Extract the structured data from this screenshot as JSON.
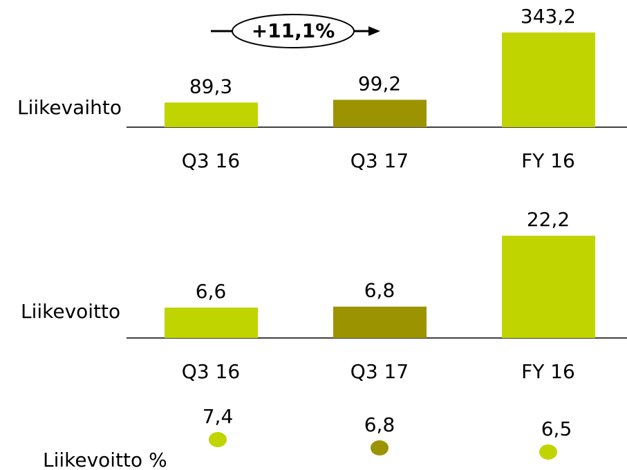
{
  "chart_data": [
    {
      "type": "bar",
      "label": "Liikevaihto",
      "categories": [
        "Q3 16",
        "Q3 17",
        "FY 16"
      ],
      "values": [
        89.3,
        99.2,
        343.2
      ],
      "value_labels": [
        "89,3",
        "99,2",
        "343,2"
      ],
      "colors": [
        "#c0d400",
        "#9c9300",
        "#c0d400"
      ],
      "annotation": "+11,1%"
    },
    {
      "type": "bar",
      "label": "Liikevoitto",
      "categories": [
        "Q3 16",
        "Q3 17",
        "FY 16"
      ],
      "values": [
        6.6,
        6.8,
        22.2
      ],
      "value_labels": [
        "6,6",
        "6,8",
        "22,2"
      ],
      "colors": [
        "#c0d400",
        "#9c9300",
        "#c0d400"
      ]
    },
    {
      "type": "dot",
      "label": "Liikevoitto %",
      "values": [
        7.4,
        6.8,
        6.5
      ],
      "value_labels": [
        "7,4",
        "6,8",
        "6,5"
      ],
      "colors": [
        "#c0d400",
        "#9c9300",
        "#c0d400"
      ]
    }
  ]
}
